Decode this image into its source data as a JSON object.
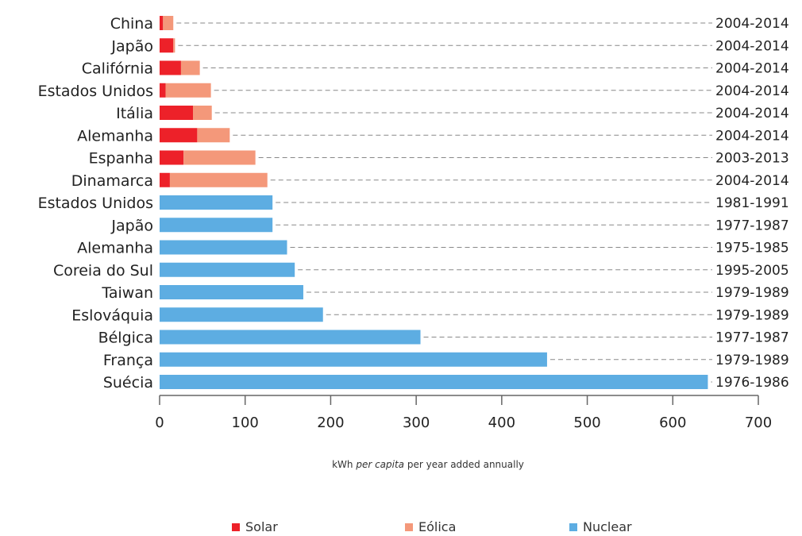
{
  "chart_data": {
    "type": "bar",
    "stacked": true,
    "orientation": "horizontal",
    "categories": [
      "China",
      "Japão",
      "Califórnia",
      "Estados Unidos",
      "Itália",
      "Alemanha",
      "Espanha",
      "Dinamarca",
      "Estados Unidos",
      "Japão",
      "Alemanha",
      "Coreia do Sul",
      "Taiwan",
      "Eslováquia",
      "Bélgica",
      "França",
      "Suécia"
    ],
    "periods": [
      "2004-2014",
      "2004-2014",
      "2004-2014",
      "2004-2014",
      "2004-2014",
      "2004-2014",
      "2003-2013",
      "2004-2014",
      "1981-1991",
      "1977-1987",
      "1975-1985",
      "1995-2005",
      "1979-1989",
      "1979-1989",
      "1977-1987",
      "1979-1989",
      "1976-1986"
    ],
    "series": [
      {
        "name": "Solar",
        "color": "#ed2129",
        "values": [
          4,
          16,
          25,
          7,
          39,
          44,
          28,
          12,
          0,
          0,
          0,
          0,
          0,
          0,
          0,
          0,
          0
        ]
      },
      {
        "name": "Eólica",
        "color": "#f4987a",
        "values": [
          12,
          2,
          22,
          53,
          22,
          38,
          84,
          114,
          0,
          0,
          0,
          0,
          0,
          0,
          0,
          0,
          0
        ]
      },
      {
        "name": "Nuclear",
        "color": "#5dade2",
        "values": [
          0,
          0,
          0,
          0,
          0,
          0,
          0,
          0,
          132,
          132,
          149,
          158,
          168,
          191,
          305,
          453,
          641
        ]
      }
    ],
    "x_ticks": [
      0,
      100,
      200,
      300,
      400,
      500,
      600,
      700
    ],
    "xlim": [
      0,
      700
    ],
    "xlabel_parts": [
      "kWh ",
      "per capita",
      " per year added annually"
    ],
    "legend": [
      "Solar",
      "Eólica",
      "Nuclear"
    ],
    "legend_position": "bottom",
    "grid": false
  }
}
